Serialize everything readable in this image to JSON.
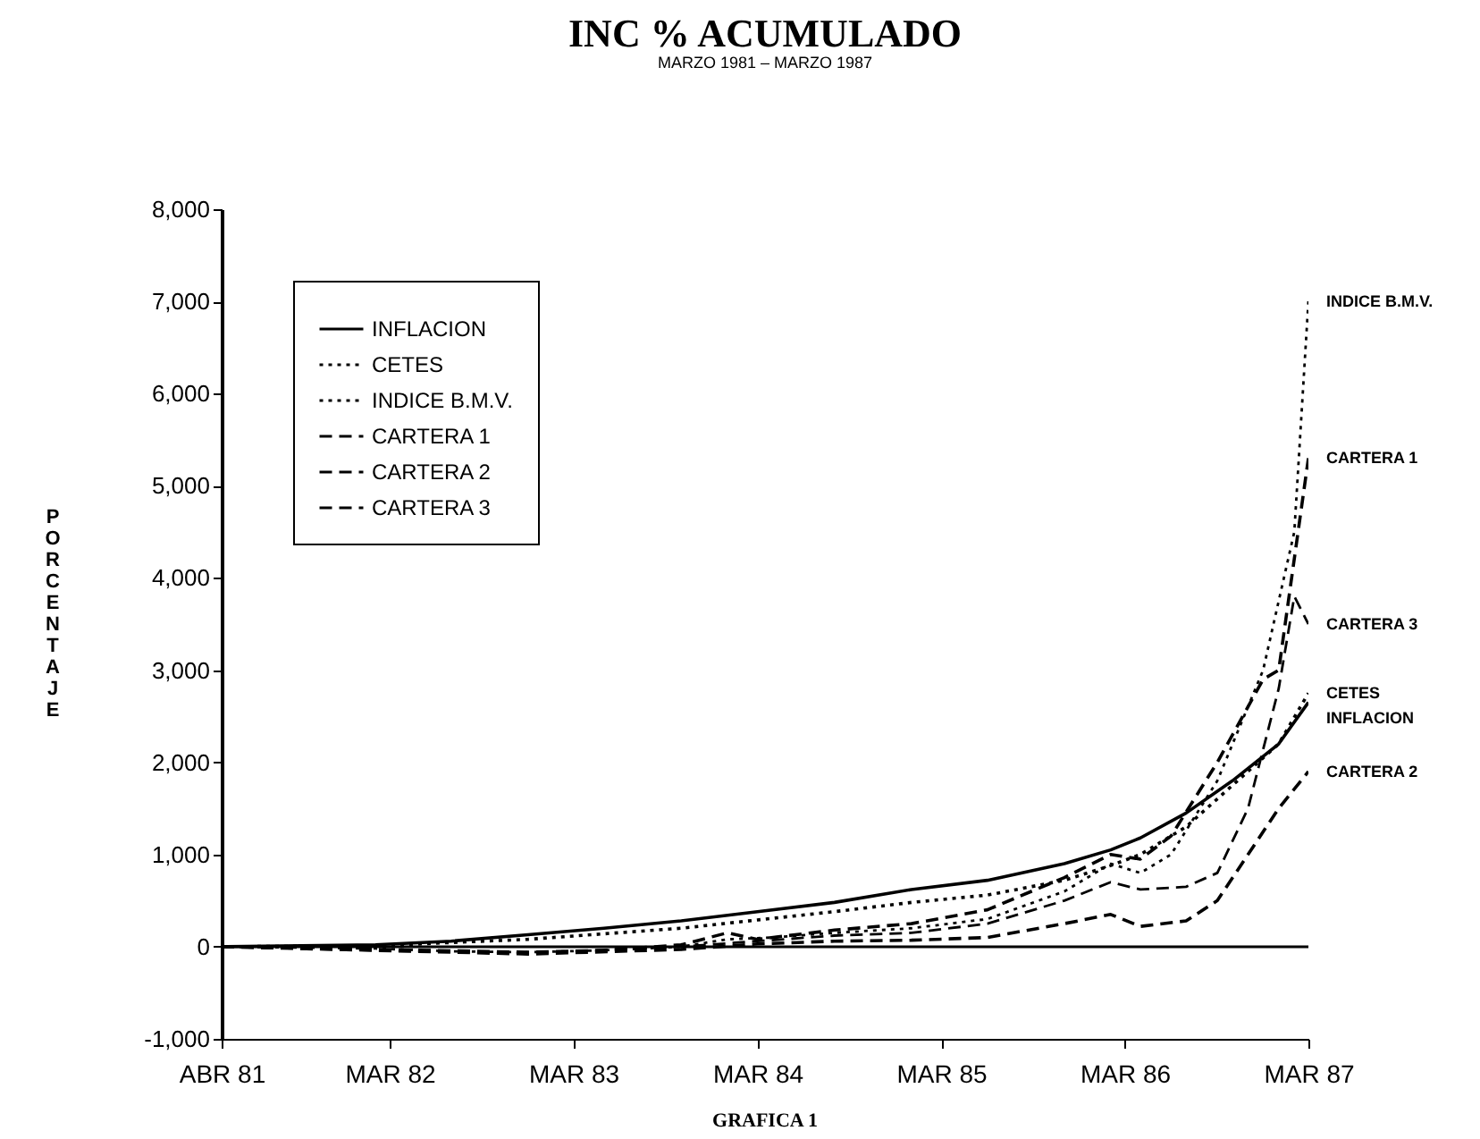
{
  "chart_data": {
    "type": "line",
    "title": "INC % ACUMULADO",
    "subtitle": "MARZO 1981 – MARZO 1987",
    "ylabel": "PORCENTAJE",
    "annotations": [
      "GRAFICA 1",
      {
        "text": "INDICE B.M.V.",
        "x": "1987-03",
        "y": 7000
      },
      {
        "text": "CARTERA 1",
        "x": "1987-03",
        "y": 5300
      },
      {
        "text": "CARTERA 3",
        "x": "1987-03",
        "y": 3500
      },
      {
        "text": "CETES",
        "x": "1987-03",
        "y": 2750
      },
      {
        "text": "INFLACION",
        "x": "1987-03",
        "y": 2650
      },
      {
        "text": "CARTERA 2",
        "x": "1987-03",
        "y": 1900
      }
    ],
    "xlim": [
      "1981-04",
      "1987-03"
    ],
    "xticks": [
      {
        "value": "1981-04",
        "label": "ABR 81"
      },
      {
        "value": "1982-03",
        "label": "MAR 82"
      },
      {
        "value": "1983-03",
        "label": "MAR 83"
      },
      {
        "value": "1984-03",
        "label": "MAR 84"
      },
      {
        "value": "1985-03",
        "label": "MAR 85"
      },
      {
        "value": "1986-03",
        "label": "MAR 86"
      },
      {
        "value": "1987-03",
        "label": "MAR 87"
      }
    ],
    "ylim": [
      -1000,
      8000
    ],
    "yticks": [
      {
        "value": -1000,
        "label": "-1,000"
      },
      {
        "value": 0,
        "label": "0"
      },
      {
        "value": 1000,
        "label": "1,000"
      },
      {
        "value": 2000,
        "label": "2,000"
      },
      {
        "value": 3000,
        "label": "3,000"
      },
      {
        "value": 4000,
        "label": "4,000"
      },
      {
        "value": 5000,
        "label": "5,000"
      },
      {
        "value": 6000,
        "label": "6,000"
      },
      {
        "value": 7000,
        "label": "7,000"
      },
      {
        "value": 8000,
        "label": "8,000"
      }
    ],
    "grid": false,
    "legend": "top left",
    "ref_lines": [
      {
        "axis": "y",
        "value": 0
      }
    ],
    "series": [
      {
        "name": "INFLACION",
        "color": "#000000",
        "line_style": "solid",
        "x": [
          "1981-04",
          "1982-02",
          "1982-07",
          "1982-12",
          "1983-05",
          "1983-10",
          "1984-03",
          "1984-08",
          "1985-01",
          "1985-06",
          "1985-11",
          "1986-02",
          "1986-04",
          "1986-07",
          "1986-10",
          "1987-01",
          "1987-03"
        ],
        "values": [
          0,
          20,
          60,
          130,
          200,
          280,
          380,
          480,
          620,
          720,
          900,
          1050,
          1180,
          1450,
          1800,
          2200,
          2650
        ]
      },
      {
        "name": "CETES",
        "color": "#000000",
        "line_style": "dotted",
        "x": [
          "1981-04",
          "1982-02",
          "1982-12",
          "1983-10",
          "1984-03",
          "1984-08",
          "1985-01",
          "1985-06",
          "1985-11",
          "1986-02",
          "1986-04",
          "1986-07",
          "1986-10",
          "1987-01",
          "1987-03"
        ],
        "values": [
          0,
          10,
          80,
          200,
          290,
          380,
          480,
          560,
          720,
          880,
          1000,
          1300,
          1750,
          2200,
          2750
        ]
      },
      {
        "name": "INDICE B.M.V.",
        "color": "#000000",
        "line_style": "dotted",
        "x": [
          "1981-04",
          "1982-02",
          "1982-07",
          "1982-12",
          "1983-05",
          "1983-10",
          "1984-01",
          "1984-04",
          "1984-08",
          "1985-01",
          "1985-06",
          "1985-11",
          "1986-02",
          "1986-04",
          "1986-06",
          "1986-09",
          "1986-12",
          "1987-02",
          "1987-03"
        ],
        "values": [
          0,
          -20,
          -50,
          -60,
          -40,
          0,
          80,
          100,
          150,
          200,
          300,
          600,
          900,
          800,
          1000,
          1800,
          3000,
          4500,
          7000
        ]
      },
      {
        "name": "CARTERA 1",
        "color": "#000000",
        "line_style": "dashed",
        "x": [
          "1981-04",
          "1982-02",
          "1982-12",
          "1983-05",
          "1983-10",
          "1984-01",
          "1984-03",
          "1984-08",
          "1985-01",
          "1985-06",
          "1985-11",
          "1986-02",
          "1986-04",
          "1986-06",
          "1986-09",
          "1986-12",
          "1987-01",
          "1987-03"
        ],
        "values": [
          0,
          -30,
          -60,
          -40,
          20,
          150,
          80,
          180,
          250,
          400,
          750,
          1000,
          950,
          1200,
          2000,
          2900,
          3000,
          5300
        ]
      },
      {
        "name": "CARTERA 2",
        "color": "#000000",
        "line_style": "dashed",
        "x": [
          "1981-04",
          "1982-02",
          "1982-12",
          "1983-10",
          "1984-03",
          "1984-08",
          "1985-01",
          "1985-06",
          "1985-11",
          "1986-02",
          "1986-04",
          "1986-07",
          "1986-09",
          "1986-11",
          "1987-01",
          "1987-03"
        ],
        "values": [
          0,
          -40,
          -80,
          -30,
          30,
          60,
          70,
          100,
          250,
          350,
          220,
          280,
          500,
          1000,
          1500,
          1900
        ]
      },
      {
        "name": "CARTERA 3",
        "color": "#000000",
        "line_style": "dashed",
        "x": [
          "1981-04",
          "1982-02",
          "1982-12",
          "1983-10",
          "1984-03",
          "1984-08",
          "1985-01",
          "1985-06",
          "1985-11",
          "1986-02",
          "1986-04",
          "1986-07",
          "1986-09",
          "1986-11",
          "1987-01",
          "1987-02",
          "1987-03"
        ],
        "values": [
          0,
          -40,
          -70,
          0,
          60,
          120,
          150,
          250,
          500,
          700,
          620,
          650,
          800,
          1500,
          2800,
          3800,
          3500
        ]
      }
    ]
  }
}
